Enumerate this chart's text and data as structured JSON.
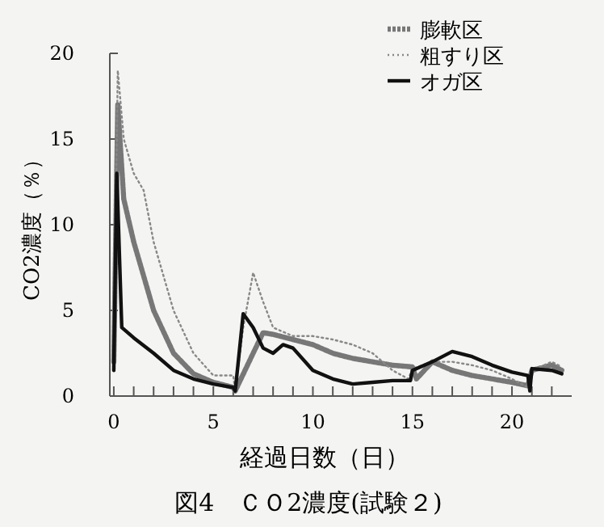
{
  "chart_data": {
    "type": "line",
    "title": "図4　ＣＯ2濃度(試験２)",
    "xlabel": "経過日数（日）",
    "ylabel": "CO2濃度（％）",
    "xlim": [
      -0.2,
      23
    ],
    "ylim": [
      0,
      20
    ],
    "xticks": [
      0,
      {
        "value": 1,
        "label": null
      },
      {
        "value": 2,
        "label": null
      },
      {
        "value": 3,
        "label": null
      },
      {
        "value": 4,
        "label": null
      },
      5,
      {
        "value": 6,
        "label": null
      },
      {
        "value": 7,
        "label": null
      },
      {
        "value": 8,
        "label": null
      },
      {
        "value": 9,
        "label": null
      },
      10,
      {
        "value": 11,
        "label": null
      },
      {
        "value": 12,
        "label": null
      },
      {
        "value": 13,
        "label": null
      },
      {
        "value": 14,
        "label": null
      },
      15,
      {
        "value": 16,
        "label": null
      },
      {
        "value": 17,
        "label": null
      },
      {
        "value": 18,
        "label": null
      },
      {
        "value": 19,
        "label": null
      },
      20,
      {
        "value": 21,
        "label": null
      },
      {
        "value": 22,
        "label": null
      }
    ],
    "yticks": [
      0,
      5,
      10,
      15,
      20
    ],
    "grid": false,
    "legend": "top right",
    "marker": "none",
    "series": [
      {
        "name": "膨軟区",
        "color": "#777777",
        "line_style": "dashed",
        "x": [
          0,
          0.2,
          0.5,
          1,
          2,
          3,
          4,
          5,
          6,
          6.1,
          7,
          7.5,
          8,
          9,
          10,
          11,
          12,
          13,
          14,
          15,
          15.2,
          16,
          17,
          18,
          19,
          20,
          20.8,
          21,
          22,
          22.5
        ],
        "values": [
          2,
          17,
          11.5,
          9,
          5,
          2.5,
          1.3,
          0.8,
          0.5,
          0.3,
          2.5,
          3.7,
          3.6,
          3.3,
          3,
          2.5,
          2.2,
          2,
          1.8,
          1.7,
          1,
          2,
          1.5,
          1.2,
          1,
          0.8,
          0.6,
          1.5,
          1.8,
          1.5
        ]
      },
      {
        "name": "粗すり区",
        "color": "#888888",
        "line_style": "dotted",
        "x": [
          0,
          0.2,
          0.5,
          1,
          1.5,
          2,
          3,
          4,
          5,
          6,
          6.1,
          6.5,
          7,
          7.5,
          8,
          9,
          10,
          11,
          12,
          13,
          14,
          14.8,
          15,
          16,
          17,
          18,
          19,
          20,
          20.8,
          21,
          22,
          22.5
        ],
        "values": [
          3,
          19,
          15,
          13,
          12,
          9,
          5,
          2.5,
          1.2,
          1.2,
          0.3,
          4,
          7.2,
          5.5,
          4,
          3.5,
          3.5,
          3.3,
          3,
          2.5,
          1.5,
          1,
          1.6,
          2,
          2,
          1.8,
          1.5,
          1,
          0.5,
          1.5,
          2,
          1.7
        ]
      },
      {
        "name": "オガ区",
        "color": "#111111",
        "line_style": "solid",
        "x": [
          0,
          0.15,
          0.4,
          0.6,
          1,
          2,
          3,
          4,
          5,
          6,
          6.1,
          6.5,
          7,
          7.5,
          8,
          8.5,
          9,
          10,
          11,
          12,
          13,
          14,
          14.9,
          15,
          16,
          17,
          18,
          19,
          20,
          20.8,
          20.9,
          21,
          22,
          22.5
        ],
        "values": [
          1.5,
          13,
          4,
          3.8,
          3.4,
          2.5,
          1.5,
          1,
          0.7,
          0.5,
          0.3,
          4.8,
          4,
          2.8,
          2.5,
          3,
          2.8,
          1.5,
          1,
          0.7,
          0.8,
          0.9,
          0.9,
          1.5,
          2,
          2.6,
          2.3,
          1.8,
          1.4,
          1.2,
          0.3,
          1.6,
          1.5,
          1.3
        ]
      }
    ]
  }
}
